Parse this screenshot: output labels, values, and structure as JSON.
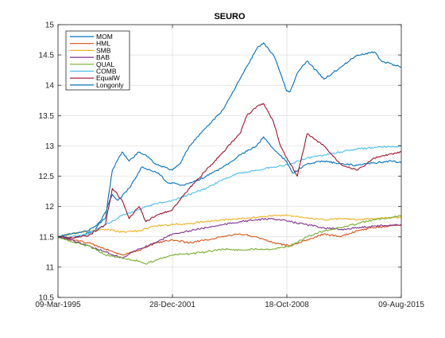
{
  "chart_data": {
    "type": "line",
    "title": "SEURO",
    "xlabel": "",
    "ylabel": "",
    "ylim": [
      10.5,
      15
    ],
    "yticks": [
      "10.5",
      "11",
      "11.5",
      "12",
      "12.5",
      "13",
      "13.5",
      "14",
      "14.5",
      "15"
    ],
    "xlim": [
      "1995-03-09",
      "2015-08-09"
    ],
    "xticks": [
      "09-Mar-1995",
      "28-Dec-2001",
      "18-Oct-2008",
      "09-Aug-2015"
    ],
    "grid": true,
    "legend_position": "top-left",
    "series": [
      {
        "name": "MOM",
        "color": "#0072bd",
        "points": [
          [
            "1995-03-09",
            11.5
          ],
          [
            "1996-01-01",
            11.48
          ],
          [
            "1996-09-01",
            11.52
          ],
          [
            "1997-06-01",
            11.62
          ],
          [
            "1998-01-01",
            11.9
          ],
          [
            "1998-06-01",
            12.2
          ],
          [
            "1998-10-01",
            12.1
          ],
          [
            "1999-06-01",
            12.3
          ],
          [
            "2000-03-01",
            12.65
          ],
          [
            "2000-09-01",
            12.6
          ],
          [
            "2001-03-01",
            12.55
          ],
          [
            "2001-09-01",
            12.4
          ],
          [
            "2002-09-01",
            12.35
          ],
          [
            "2003-03-01",
            12.4
          ],
          [
            "2004-01-01",
            12.5
          ],
          [
            "2005-01-01",
            12.65
          ],
          [
            "2006-01-01",
            12.85
          ],
          [
            "2007-01-01",
            13.0
          ],
          [
            "2007-06-01",
            13.15
          ],
          [
            "2008-01-01",
            12.95
          ],
          [
            "2008-10-01",
            12.75
          ],
          [
            "2009-03-01",
            12.55
          ],
          [
            "2010-01-01",
            12.7
          ],
          [
            "2011-01-01",
            12.75
          ],
          [
            "2012-01-01",
            12.7
          ],
          [
            "2013-01-01",
            12.68
          ],
          [
            "2014-01-01",
            12.72
          ],
          [
            "2015-01-01",
            12.75
          ],
          [
            "2015-08-09",
            12.72
          ]
        ]
      },
      {
        "name": "HML",
        "color": "#d95319",
        "points": [
          [
            "1995-03-09",
            11.5
          ],
          [
            "1996-01-01",
            11.45
          ],
          [
            "1997-01-01",
            11.4
          ],
          [
            "1998-01-01",
            11.3
          ],
          [
            "1999-01-01",
            11.2
          ],
          [
            "2000-01-01",
            11.28
          ],
          [
            "2001-01-01",
            11.4
          ],
          [
            "2002-01-01",
            11.45
          ],
          [
            "2003-01-01",
            11.4
          ],
          [
            "2004-01-01",
            11.45
          ],
          [
            "2005-01-01",
            11.5
          ],
          [
            "2006-01-01",
            11.55
          ],
          [
            "2007-01-01",
            11.5
          ],
          [
            "2008-01-01",
            11.4
          ],
          [
            "2009-01-01",
            11.35
          ],
          [
            "2010-01-01",
            11.45
          ],
          [
            "2011-01-01",
            11.55
          ],
          [
            "2012-01-01",
            11.5
          ],
          [
            "2013-01-01",
            11.6
          ],
          [
            "2014-01-01",
            11.65
          ],
          [
            "2015-08-09",
            11.7
          ]
        ]
      },
      {
        "name": "SMB",
        "color": "#edb120",
        "points": [
          [
            "1995-03-09",
            11.5
          ],
          [
            "1996-01-01",
            11.55
          ],
          [
            "1997-01-01",
            11.6
          ],
          [
            "1998-01-01",
            11.62
          ],
          [
            "1999-01-01",
            11.58
          ],
          [
            "2000-01-01",
            11.6
          ],
          [
            "2001-01-01",
            11.68
          ],
          [
            "2002-01-01",
            11.7
          ],
          [
            "2003-01-01",
            11.72
          ],
          [
            "2004-01-01",
            11.75
          ],
          [
            "2005-01-01",
            11.78
          ],
          [
            "2006-01-01",
            11.8
          ],
          [
            "2007-01-01",
            11.82
          ],
          [
            "2008-01-01",
            11.85
          ],
          [
            "2009-01-01",
            11.85
          ],
          [
            "2010-01-01",
            11.82
          ],
          [
            "2011-01-01",
            11.78
          ],
          [
            "2012-01-01",
            11.8
          ],
          [
            "2013-01-01",
            11.78
          ],
          [
            "2014-01-01",
            11.8
          ],
          [
            "2015-08-09",
            11.82
          ]
        ]
      },
      {
        "name": "BAB",
        "color": "#7e2f8e",
        "points": [
          [
            "1995-03-09",
            11.5
          ],
          [
            "1996-01-01",
            11.45
          ],
          [
            "1997-01-01",
            11.35
          ],
          [
            "1998-01-01",
            11.25
          ],
          [
            "1999-01-01",
            11.15
          ],
          [
            "2000-01-01",
            11.3
          ],
          [
            "2001-01-01",
            11.4
          ],
          [
            "2002-01-01",
            11.55
          ],
          [
            "2003-01-01",
            11.6
          ],
          [
            "2004-01-01",
            11.65
          ],
          [
            "2005-01-01",
            11.7
          ],
          [
            "2006-01-01",
            11.75
          ],
          [
            "2007-01-01",
            11.78
          ],
          [
            "2008-01-01",
            11.8
          ],
          [
            "2009-01-01",
            11.75
          ],
          [
            "2010-01-01",
            11.7
          ],
          [
            "2011-01-01",
            11.65
          ],
          [
            "2012-01-01",
            11.62
          ],
          [
            "2013-01-01",
            11.65
          ],
          [
            "2014-01-01",
            11.68
          ],
          [
            "2015-08-09",
            11.7
          ]
        ]
      },
      {
        "name": "QUAL",
        "color": "#77ac30",
        "points": [
          [
            "1995-03-09",
            11.5
          ],
          [
            "1996-01-01",
            11.42
          ],
          [
            "1997-01-01",
            11.35
          ],
          [
            "1998-01-01",
            11.2
          ],
          [
            "1999-01-01",
            11.15
          ],
          [
            "2000-01-01",
            11.1
          ],
          [
            "2000-06-01",
            11.05
          ],
          [
            "2001-01-01",
            11.12
          ],
          [
            "2002-01-01",
            11.2
          ],
          [
            "2003-01-01",
            11.22
          ],
          [
            "2004-01-01",
            11.25
          ],
          [
            "2005-01-01",
            11.3
          ],
          [
            "2006-01-01",
            11.28
          ],
          [
            "2007-01-01",
            11.3
          ],
          [
            "2008-01-01",
            11.3
          ],
          [
            "2009-01-01",
            11.35
          ],
          [
            "2010-01-01",
            11.5
          ],
          [
            "2011-01-01",
            11.6
          ],
          [
            "2012-01-01",
            11.65
          ],
          [
            "2013-01-01",
            11.72
          ],
          [
            "2014-01-01",
            11.78
          ],
          [
            "2015-08-09",
            11.85
          ]
        ]
      },
      {
        "name": "COMB",
        "color": "#4dbeee",
        "points": [
          [
            "1995-03-09",
            11.5
          ],
          [
            "1996-01-01",
            11.5
          ],
          [
            "1997-01-01",
            11.55
          ],
          [
            "1998-01-01",
            11.7
          ],
          [
            "1999-01-01",
            11.85
          ],
          [
            "2000-01-01",
            11.95
          ],
          [
            "2001-01-01",
            12.05
          ],
          [
            "2002-01-01",
            12.1
          ],
          [
            "2003-01-01",
            12.2
          ],
          [
            "2004-01-01",
            12.3
          ],
          [
            "2005-01-01",
            12.45
          ],
          [
            "2006-01-01",
            12.55
          ],
          [
            "2007-01-01",
            12.6
          ],
          [
            "2008-01-01",
            12.65
          ],
          [
            "2009-01-01",
            12.7
          ],
          [
            "2010-01-01",
            12.8
          ],
          [
            "2011-01-01",
            12.85
          ],
          [
            "2012-01-01",
            12.9
          ],
          [
            "2013-01-01",
            12.95
          ],
          [
            "2014-01-01",
            12.97
          ],
          [
            "2015-08-09",
            13.0
          ]
        ]
      },
      {
        "name": "EqualW",
        "color": "#a2142f",
        "points": [
          [
            "1995-03-09",
            11.5
          ],
          [
            "1996-01-01",
            11.48
          ],
          [
            "1997-01-01",
            11.52
          ],
          [
            "1998-01-01",
            11.7
          ],
          [
            "1998-06-01",
            12.3
          ],
          [
            "1999-01-01",
            12.1
          ],
          [
            "1999-06-01",
            11.8
          ],
          [
            "2000-01-01",
            12.0
          ],
          [
            "2000-06-01",
            11.75
          ],
          [
            "2001-01-01",
            11.85
          ],
          [
            "2001-12-28",
            11.95
          ],
          [
            "2002-06-01",
            12.1
          ],
          [
            "2003-01-01",
            12.3
          ],
          [
            "2004-01-01",
            12.6
          ],
          [
            "2005-01-01",
            12.9
          ],
          [
            "2006-01-01",
            13.2
          ],
          [
            "2006-06-01",
            13.5
          ],
          [
            "2007-01-01",
            13.65
          ],
          [
            "2007-06-01",
            13.7
          ],
          [
            "2008-01-01",
            13.4
          ],
          [
            "2008-06-01",
            13.0
          ],
          [
            "2008-10-18",
            12.8
          ],
          [
            "2009-01-01",
            12.7
          ],
          [
            "2009-06-01",
            12.5
          ],
          [
            "2010-01-01",
            13.2
          ],
          [
            "2011-01-01",
            13.0
          ],
          [
            "2012-01-01",
            12.7
          ],
          [
            "2013-01-01",
            12.6
          ],
          [
            "2014-01-01",
            12.8
          ],
          [
            "2015-08-09",
            12.9
          ]
        ]
      },
      {
        "name": "Longonly",
        "color": "#0072bd",
        "points": [
          [
            "1995-03-09",
            11.5
          ],
          [
            "1996-01-01",
            11.55
          ],
          [
            "1997-01-01",
            11.6
          ],
          [
            "1998-01-01",
            11.8
          ],
          [
            "1998-06-01",
            12.6
          ],
          [
            "1999-01-01",
            12.9
          ],
          [
            "1999-06-01",
            12.75
          ],
          [
            "2000-01-01",
            12.9
          ],
          [
            "2000-06-01",
            12.85
          ],
          [
            "2001-01-01",
            12.7
          ],
          [
            "2001-12-28",
            12.6
          ],
          [
            "2002-06-01",
            12.7
          ],
          [
            "2003-01-01",
            13.0
          ],
          [
            "2004-01-01",
            13.3
          ],
          [
            "2005-01-01",
            13.6
          ],
          [
            "2006-01-01",
            14.1
          ],
          [
            "2007-01-01",
            14.6
          ],
          [
            "2007-06-01",
            14.7
          ],
          [
            "2008-01-01",
            14.5
          ],
          [
            "2008-06-01",
            14.2
          ],
          [
            "2008-10-18",
            13.9
          ],
          [
            "2009-01-01",
            13.9
          ],
          [
            "2009-06-01",
            14.2
          ],
          [
            "2010-01-01",
            14.4
          ],
          [
            "2011-01-01",
            14.1
          ],
          [
            "2012-01-01",
            14.3
          ],
          [
            "2013-01-01",
            14.5
          ],
          [
            "2014-01-01",
            14.55
          ],
          [
            "2014-06-01",
            14.4
          ],
          [
            "2015-08-09",
            14.3
          ]
        ]
      }
    ]
  }
}
